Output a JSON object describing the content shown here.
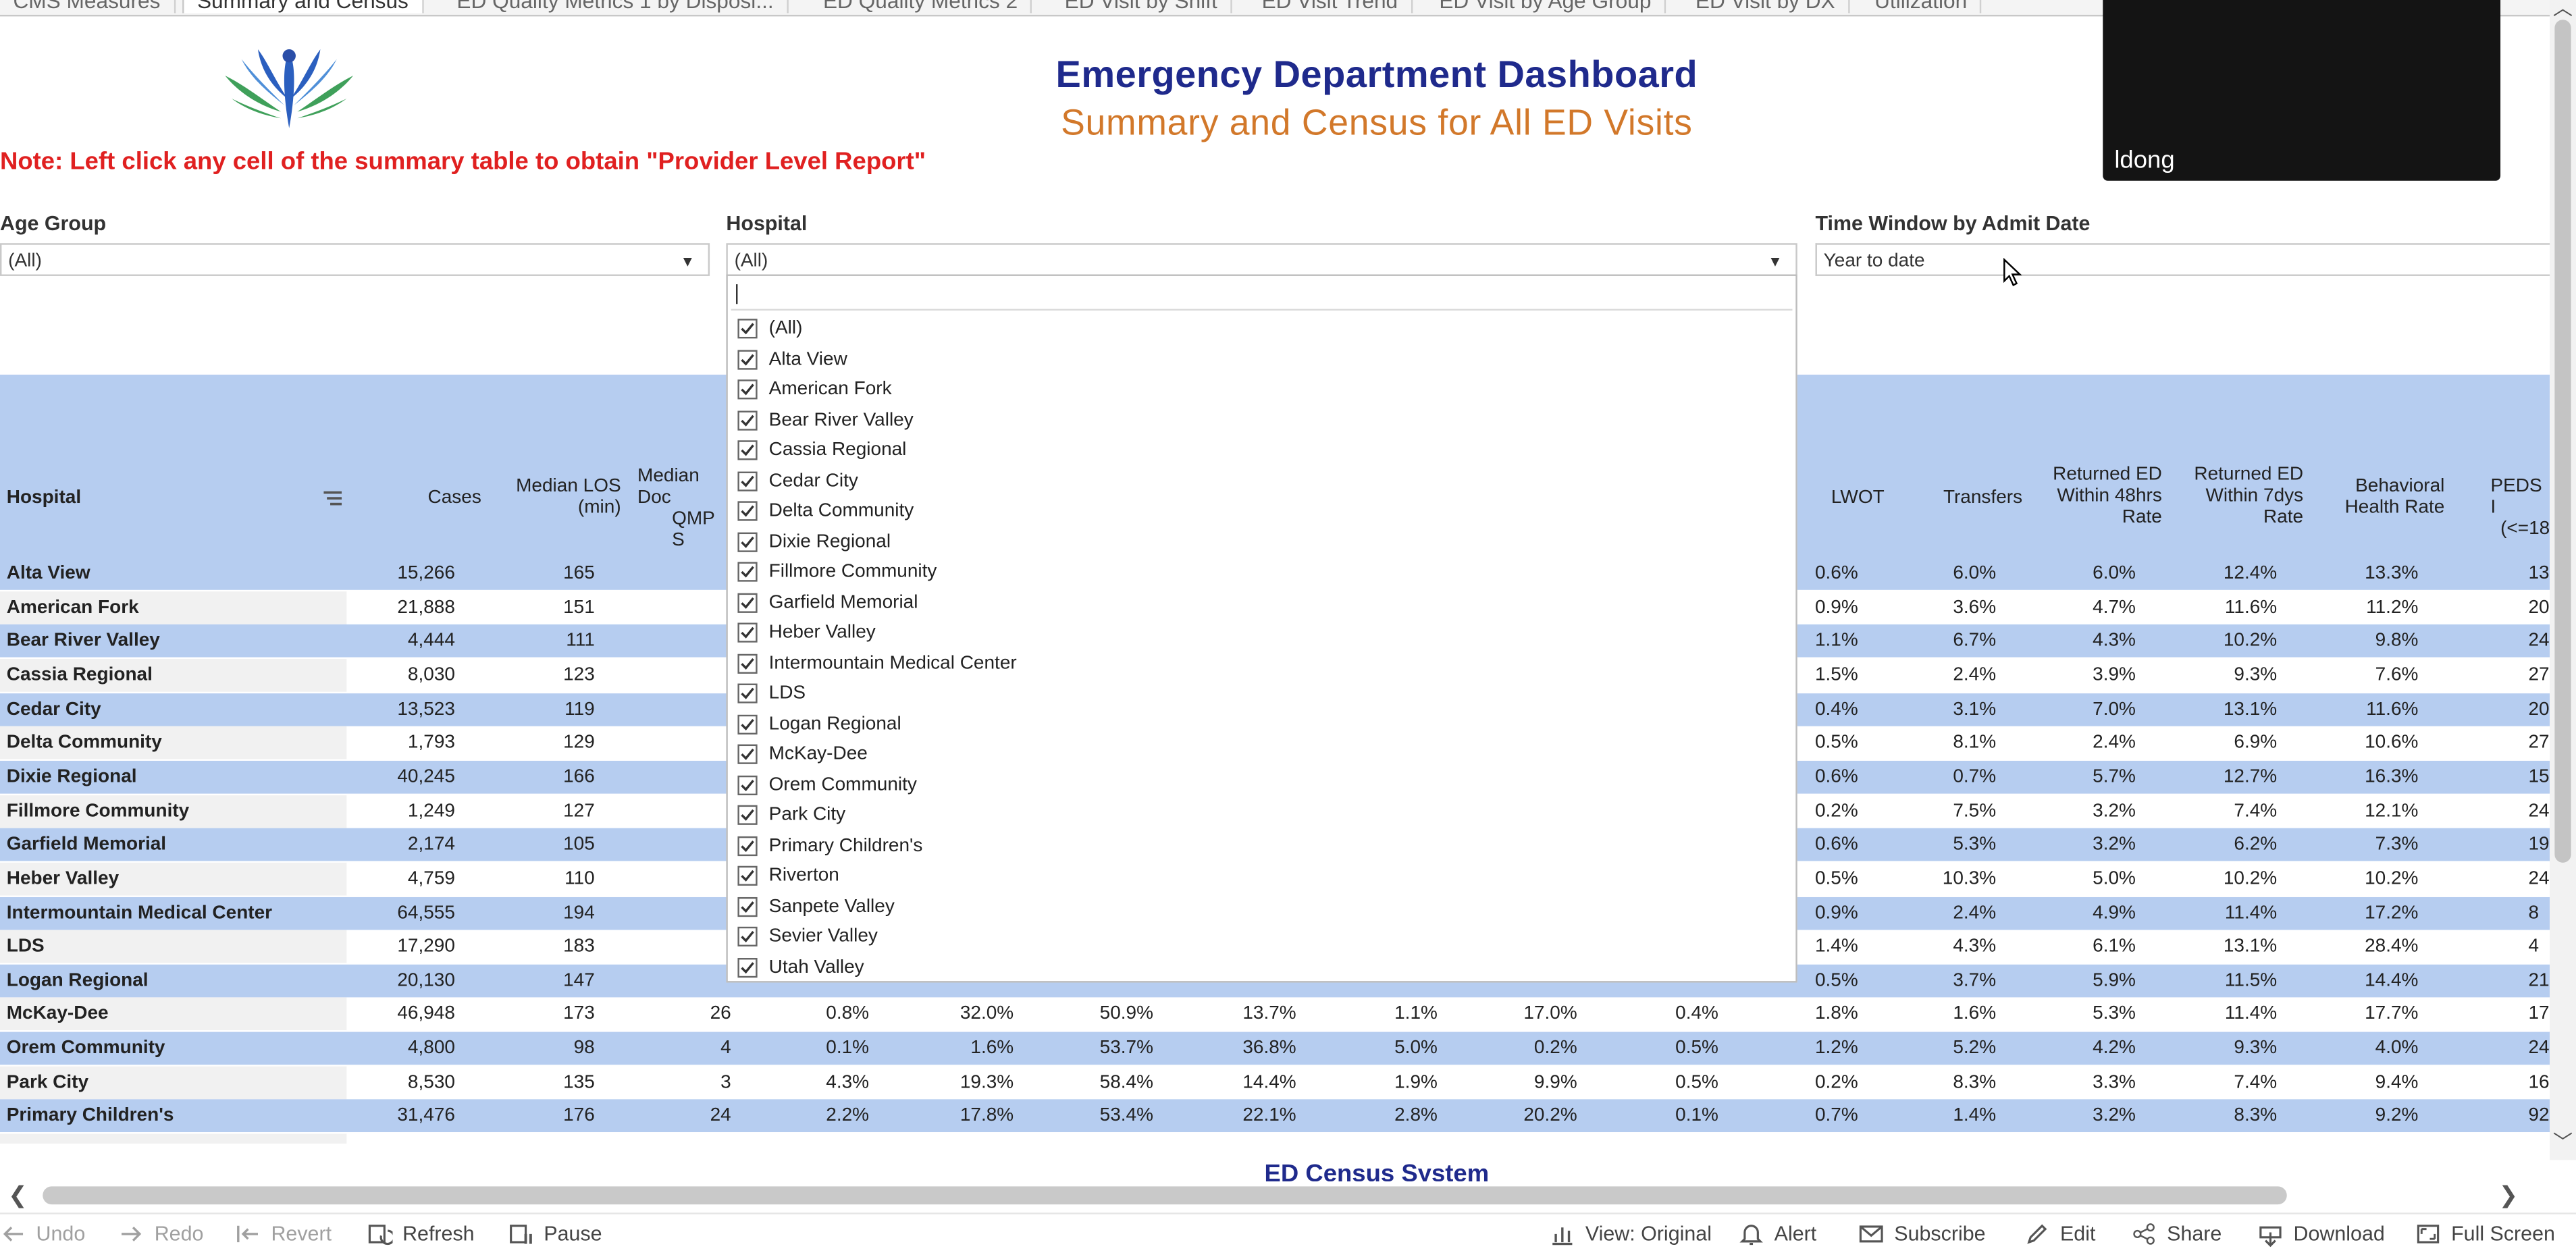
{
  "tabs": [
    "CMS Measures",
    "Summary and Census",
    "ED Quality Metrics 1 by Disposi...",
    "ED Quality Metrics 2",
    "ED Visit by Shift",
    "ED Visit Trend",
    "ED Visit by Age Group",
    "ED Visit by DX",
    "Utilization"
  ],
  "header": {
    "title": "Emergency Department Dashboard",
    "subtitle": "Summary and Census for All ED Visits",
    "note": "Note: Left click any cell of the summary table to obtain \"Provider Level Report\""
  },
  "video": {
    "name": "ldong"
  },
  "filters": {
    "age_group": {
      "label": "Age Group",
      "value": "(All)"
    },
    "hospital": {
      "label": "Hospital",
      "value": "(All)"
    },
    "time_window": {
      "label": "Time Window by Admit Date",
      "value": "Year to date"
    }
  },
  "dropdown": {
    "items": [
      "(All)",
      "Alta View",
      "American Fork",
      "Bear River Valley",
      "Cassia Regional",
      "Cedar City",
      "Delta Community",
      "Dixie Regional",
      "Fillmore Community",
      "Garfield Memorial",
      "Heber Valley",
      "Intermountain Medical Center",
      "LDS",
      "Logan Regional",
      "McKay-Dee",
      "Orem Community",
      "Park City",
      "Primary Children's",
      "Riverton",
      "Sanpete Valley",
      "Sevier Valley",
      "Utah Valley"
    ]
  },
  "table": {
    "headers": {
      "hospital": "Hospital",
      "cases": "Cases",
      "median_los": [
        "Median LOS",
        "(min)"
      ],
      "median_doc": [
        "Median Doc",
        "QMP S"
      ],
      "lwot": "LWOT",
      "transfers": "Transfers",
      "ret48": [
        "Returned ED",
        "Within 48hrs",
        "Rate"
      ],
      "ret7": [
        "Returned ED",
        "Within 7dys",
        "Rate"
      ],
      "behavioral": [
        "Behavioral",
        "Health Rate"
      ],
      "peds": [
        "PEDS I",
        "(<=18"
      ]
    },
    "rows": [
      {
        "hospital": "Alta View",
        "cases": "15,266",
        "los": "165",
        "doc": "",
        "c5": "",
        "c6": "",
        "c7": "",
        "c8": "",
        "c9": "",
        "c10": "",
        "c11": "",
        "lwot": "0.6%",
        "transfers": "6.0%",
        "r48": "6.0%",
        "r7": "12.4%",
        "bh": "13.3%",
        "peds": "13"
      },
      {
        "hospital": "American Fork",
        "cases": "21,888",
        "los": "151",
        "doc": "",
        "c5": "",
        "c6": "",
        "c7": "",
        "c8": "",
        "c9": "",
        "c10": "",
        "c11": "",
        "lwot": "0.9%",
        "transfers": "3.6%",
        "r48": "4.7%",
        "r7": "11.6%",
        "bh": "11.2%",
        "peds": "20"
      },
      {
        "hospital": "Bear River Valley",
        "cases": "4,444",
        "los": "111",
        "doc": "",
        "c5": "",
        "c6": "",
        "c7": "",
        "c8": "",
        "c9": "",
        "c10": "",
        "c11": "",
        "lwot": "1.1%",
        "transfers": "6.7%",
        "r48": "4.3%",
        "r7": "10.2%",
        "bh": "9.8%",
        "peds": "24"
      },
      {
        "hospital": "Cassia Regional",
        "cases": "8,030",
        "los": "123",
        "doc": "",
        "c5": "",
        "c6": "",
        "c7": "",
        "c8": "",
        "c9": "",
        "c10": "",
        "c11": "",
        "lwot": "1.5%",
        "transfers": "2.4%",
        "r48": "3.9%",
        "r7": "9.3%",
        "bh": "7.6%",
        "peds": "27"
      },
      {
        "hospital": "Cedar City",
        "cases": "13,523",
        "los": "119",
        "doc": "",
        "c5": "",
        "c6": "",
        "c7": "",
        "c8": "",
        "c9": "",
        "c10": "",
        "c11": "",
        "lwot": "0.4%",
        "transfers": "3.1%",
        "r48": "7.0%",
        "r7": "13.1%",
        "bh": "11.6%",
        "peds": "20"
      },
      {
        "hospital": "Delta Community",
        "cases": "1,793",
        "los": "129",
        "doc": "",
        "c5": "",
        "c6": "",
        "c7": "",
        "c8": "",
        "c9": "",
        "c10": "",
        "c11": "",
        "lwot": "0.5%",
        "transfers": "8.1%",
        "r48": "2.4%",
        "r7": "6.9%",
        "bh": "10.6%",
        "peds": "27"
      },
      {
        "hospital": "Dixie Regional",
        "cases": "40,245",
        "los": "166",
        "doc": "",
        "c5": "",
        "c6": "",
        "c7": "",
        "c8": "",
        "c9": "",
        "c10": "",
        "c11": "",
        "lwot": "0.6%",
        "transfers": "0.7%",
        "r48": "5.7%",
        "r7": "12.7%",
        "bh": "16.3%",
        "peds": "15"
      },
      {
        "hospital": "Fillmore Community",
        "cases": "1,249",
        "los": "127",
        "doc": "",
        "c5": "",
        "c6": "",
        "c7": "",
        "c8": "",
        "c9": "",
        "c10": "",
        "c11": "",
        "lwot": "0.2%",
        "transfers": "7.5%",
        "r48": "3.2%",
        "r7": "7.4%",
        "bh": "12.1%",
        "peds": "24"
      },
      {
        "hospital": "Garfield Memorial",
        "cases": "2,174",
        "los": "105",
        "doc": "",
        "c5": "",
        "c6": "",
        "c7": "",
        "c8": "",
        "c9": "",
        "c10": "",
        "c11": "",
        "lwot": "0.6%",
        "transfers": "5.3%",
        "r48": "3.2%",
        "r7": "6.2%",
        "bh": "7.3%",
        "peds": "19"
      },
      {
        "hospital": "Heber Valley",
        "cases": "4,759",
        "los": "110",
        "doc": "",
        "c5": "",
        "c6": "",
        "c7": "",
        "c8": "",
        "c9": "",
        "c10": "",
        "c11": "",
        "lwot": "0.5%",
        "transfers": "10.3%",
        "r48": "5.0%",
        "r7": "10.2%",
        "bh": "10.2%",
        "peds": "24"
      },
      {
        "hospital": "Intermountain Medical Center",
        "cases": "64,555",
        "los": "194",
        "doc": "",
        "c5": "",
        "c6": "",
        "c7": "",
        "c8": "",
        "c9": "",
        "c10": "",
        "c11": "",
        "lwot": "0.9%",
        "transfers": "2.4%",
        "r48": "4.9%",
        "r7": "11.4%",
        "bh": "17.2%",
        "peds": "8"
      },
      {
        "hospital": "LDS",
        "cases": "17,290",
        "los": "183",
        "doc": "",
        "c5": "",
        "c6": "",
        "c7": "",
        "c8": "",
        "c9": "",
        "c10": "",
        "c11": "",
        "lwot": "1.4%",
        "transfers": "4.3%",
        "r48": "6.1%",
        "r7": "13.1%",
        "bh": "28.4%",
        "peds": "4"
      },
      {
        "hospital": "Logan Regional",
        "cases": "20,130",
        "los": "147",
        "doc": "",
        "c5": "",
        "c6": "",
        "c7": "",
        "c8": "",
        "c9": "",
        "c10": "",
        "c11": "",
        "lwot": "0.5%",
        "transfers": "3.7%",
        "r48": "5.9%",
        "r7": "11.5%",
        "bh": "14.4%",
        "peds": "21"
      },
      {
        "hospital": "McKay-Dee",
        "cases": "46,948",
        "los": "173",
        "doc": "26",
        "c5": "0.8%",
        "c6": "32.0%",
        "c7": "50.9%",
        "c8": "13.7%",
        "c9": "1.1%",
        "c10": "17.0%",
        "c11": "0.4%",
        "lwot": "1.8%",
        "transfers": "1.6%",
        "r48": "5.3%",
        "r7": "11.4%",
        "bh": "17.7%",
        "peds": "17"
      },
      {
        "hospital": "Orem Community",
        "cases": "4,800",
        "los": "98",
        "doc": "4",
        "c5": "0.1%",
        "c6": "1.6%",
        "c7": "53.7%",
        "c8": "36.8%",
        "c9": "5.0%",
        "c10": "0.2%",
        "c11": "0.5%",
        "lwot": "1.2%",
        "transfers": "5.2%",
        "r48": "4.2%",
        "r7": "9.3%",
        "bh": "4.0%",
        "peds": "24"
      },
      {
        "hospital": "Park City",
        "cases": "8,530",
        "los": "135",
        "doc": "3",
        "c5": "4.3%",
        "c6": "19.3%",
        "c7": "58.4%",
        "c8": "14.4%",
        "c9": "1.9%",
        "c10": "9.9%",
        "c11": "0.5%",
        "lwot": "0.2%",
        "transfers": "8.3%",
        "r48": "3.3%",
        "r7": "7.4%",
        "bh": "9.4%",
        "peds": "16"
      },
      {
        "hospital": "Primary Children's",
        "cases": "31,476",
        "los": "176",
        "doc": "24",
        "c5": "2.2%",
        "c6": "17.8%",
        "c7": "53.4%",
        "c8": "22.1%",
        "c9": "2.8%",
        "c10": "20.2%",
        "c11": "0.1%",
        "lwot": "0.7%",
        "transfers": "1.4%",
        "r48": "3.2%",
        "r7": "8.3%",
        "bh": "9.2%",
        "peds": "92"
      }
    ]
  },
  "census_title": "ED Census System",
  "toolbar": {
    "undo": "Undo",
    "redo": "Redo",
    "revert": "Revert",
    "refresh": "Refresh",
    "pause": "Pause",
    "view": "View: Original",
    "alert": "Alert",
    "subscribe": "Subscribe",
    "edit": "Edit",
    "share": "Share",
    "download": "Download",
    "fullscreen": "Full Screen"
  },
  "colors": {
    "title": "#1f2a8c",
    "subtitle": "#d2782a",
    "note": "#e02020",
    "row_band": "#b6cdf0"
  }
}
